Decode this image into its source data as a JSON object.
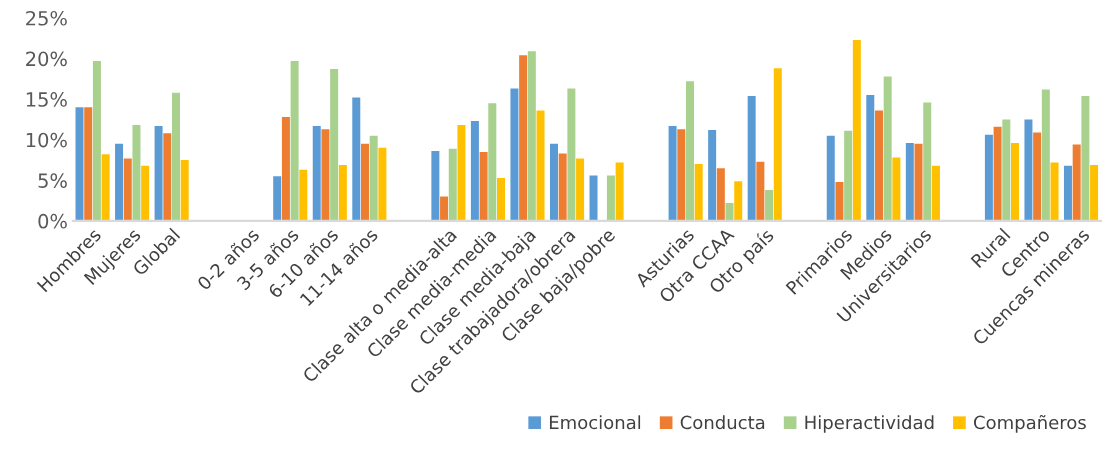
{
  "chart_data": {
    "type": "bar",
    "categories": [
      "Hombres",
      "Mujeres",
      "Global",
      null,
      "0-2 años",
      "3-5 años",
      "6-10 años",
      "11-14 años",
      null,
      "Clase alta o media-alta",
      "Clase media-media",
      "Clase media-baja",
      "Clase trabajadora/obrera",
      "Clase baja/pobre",
      null,
      "Asturias",
      "Otra CCAA",
      "Otro país",
      null,
      "Primarios",
      "Medios",
      "Universitarios",
      null,
      "Rural",
      "Centro",
      "Cuencas mineras"
    ],
    "series": [
      {
        "name": "Emocional",
        "color": "#5b9bd5",
        "values": [
          14.0,
          9.5,
          11.7,
          null,
          null,
          5.5,
          11.7,
          15.2,
          null,
          8.6,
          12.3,
          16.3,
          9.5,
          5.6,
          null,
          11.7,
          11.2,
          15.4,
          null,
          10.5,
          15.5,
          9.6,
          null,
          10.6,
          12.5,
          6.8
        ]
      },
      {
        "name": "Conducta",
        "color": "#ed7d31",
        "values": [
          14.0,
          7.7,
          10.8,
          null,
          null,
          12.8,
          11.3,
          9.5,
          null,
          3.0,
          8.5,
          20.4,
          8.3,
          null,
          null,
          11.3,
          6.5,
          7.3,
          null,
          4.8,
          13.6,
          9.5,
          null,
          11.6,
          10.9,
          9.4
        ]
      },
      {
        "name": "Hiperactividad",
        "color": "#a9d18e",
        "values": [
          19.7,
          11.8,
          15.8,
          null,
          null,
          19.7,
          18.7,
          10.5,
          null,
          8.9,
          14.5,
          20.9,
          16.3,
          5.6,
          null,
          17.2,
          2.2,
          3.8,
          null,
          11.1,
          17.8,
          14.6,
          null,
          12.5,
          16.2,
          15.4
        ]
      },
      {
        "name": "Compañeros",
        "color": "#ffc000",
        "values": [
          8.2,
          6.8,
          7.5,
          null,
          null,
          6.3,
          6.9,
          9.0,
          null,
          11.8,
          5.3,
          13.6,
          7.7,
          7.2,
          null,
          7.0,
          4.9,
          18.8,
          null,
          22.3,
          7.8,
          6.8,
          null,
          9.6,
          7.2,
          6.9
        ]
      }
    ],
    "ylim": [
      0,
      25
    ],
    "yticks": [
      {
        "value": 0,
        "label": "0%"
      },
      {
        "value": 5,
        "label": "5%"
      },
      {
        "value": 10,
        "label": "10%"
      },
      {
        "value": 15,
        "label": "15%"
      },
      {
        "value": 20,
        "label": "20%"
      },
      {
        "value": 25,
        "label": "25%"
      }
    ],
    "legend": "bottom right"
  }
}
